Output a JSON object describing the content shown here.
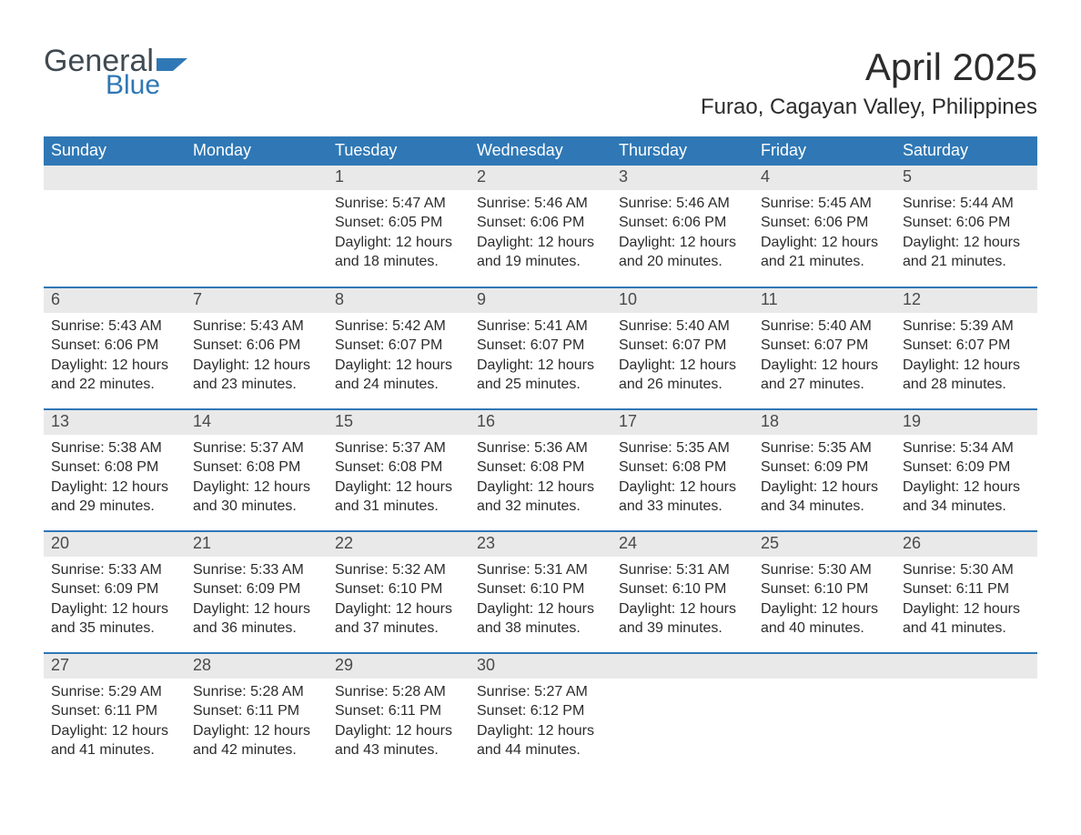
{
  "logo": {
    "word1": "General",
    "word2": "Blue"
  },
  "header": {
    "month": "April 2025",
    "location": "Furao, Cagayan Valley, Philippines"
  },
  "colors": {
    "header_bg": "#2f78b5",
    "header_text": "#ffffff",
    "daynum_bg": "#e9e9e9",
    "rule": "#2f78b5",
    "body_text": "#2c2c2c",
    "page_bg": "#ffffff"
  },
  "day_labels": [
    "Sunday",
    "Monday",
    "Tuesday",
    "Wednesday",
    "Thursday",
    "Friday",
    "Saturday"
  ],
  "weeks": [
    [
      null,
      null,
      {
        "n": "1",
        "sr": "Sunrise: 5:47 AM",
        "ss": "Sunset: 6:05 PM",
        "d1": "Daylight: 12 hours",
        "d2": "and 18 minutes."
      },
      {
        "n": "2",
        "sr": "Sunrise: 5:46 AM",
        "ss": "Sunset: 6:06 PM",
        "d1": "Daylight: 12 hours",
        "d2": "and 19 minutes."
      },
      {
        "n": "3",
        "sr": "Sunrise: 5:46 AM",
        "ss": "Sunset: 6:06 PM",
        "d1": "Daylight: 12 hours",
        "d2": "and 20 minutes."
      },
      {
        "n": "4",
        "sr": "Sunrise: 5:45 AM",
        "ss": "Sunset: 6:06 PM",
        "d1": "Daylight: 12 hours",
        "d2": "and 21 minutes."
      },
      {
        "n": "5",
        "sr": "Sunrise: 5:44 AM",
        "ss": "Sunset: 6:06 PM",
        "d1": "Daylight: 12 hours",
        "d2": "and 21 minutes."
      }
    ],
    [
      {
        "n": "6",
        "sr": "Sunrise: 5:43 AM",
        "ss": "Sunset: 6:06 PM",
        "d1": "Daylight: 12 hours",
        "d2": "and 22 minutes."
      },
      {
        "n": "7",
        "sr": "Sunrise: 5:43 AM",
        "ss": "Sunset: 6:06 PM",
        "d1": "Daylight: 12 hours",
        "d2": "and 23 minutes."
      },
      {
        "n": "8",
        "sr": "Sunrise: 5:42 AM",
        "ss": "Sunset: 6:07 PM",
        "d1": "Daylight: 12 hours",
        "d2": "and 24 minutes."
      },
      {
        "n": "9",
        "sr": "Sunrise: 5:41 AM",
        "ss": "Sunset: 6:07 PM",
        "d1": "Daylight: 12 hours",
        "d2": "and 25 minutes."
      },
      {
        "n": "10",
        "sr": "Sunrise: 5:40 AM",
        "ss": "Sunset: 6:07 PM",
        "d1": "Daylight: 12 hours",
        "d2": "and 26 minutes."
      },
      {
        "n": "11",
        "sr": "Sunrise: 5:40 AM",
        "ss": "Sunset: 6:07 PM",
        "d1": "Daylight: 12 hours",
        "d2": "and 27 minutes."
      },
      {
        "n": "12",
        "sr": "Sunrise: 5:39 AM",
        "ss": "Sunset: 6:07 PM",
        "d1": "Daylight: 12 hours",
        "d2": "and 28 minutes."
      }
    ],
    [
      {
        "n": "13",
        "sr": "Sunrise: 5:38 AM",
        "ss": "Sunset: 6:08 PM",
        "d1": "Daylight: 12 hours",
        "d2": "and 29 minutes."
      },
      {
        "n": "14",
        "sr": "Sunrise: 5:37 AM",
        "ss": "Sunset: 6:08 PM",
        "d1": "Daylight: 12 hours",
        "d2": "and 30 minutes."
      },
      {
        "n": "15",
        "sr": "Sunrise: 5:37 AM",
        "ss": "Sunset: 6:08 PM",
        "d1": "Daylight: 12 hours",
        "d2": "and 31 minutes."
      },
      {
        "n": "16",
        "sr": "Sunrise: 5:36 AM",
        "ss": "Sunset: 6:08 PM",
        "d1": "Daylight: 12 hours",
        "d2": "and 32 minutes."
      },
      {
        "n": "17",
        "sr": "Sunrise: 5:35 AM",
        "ss": "Sunset: 6:08 PM",
        "d1": "Daylight: 12 hours",
        "d2": "and 33 minutes."
      },
      {
        "n": "18",
        "sr": "Sunrise: 5:35 AM",
        "ss": "Sunset: 6:09 PM",
        "d1": "Daylight: 12 hours",
        "d2": "and 34 minutes."
      },
      {
        "n": "19",
        "sr": "Sunrise: 5:34 AM",
        "ss": "Sunset: 6:09 PM",
        "d1": "Daylight: 12 hours",
        "d2": "and 34 minutes."
      }
    ],
    [
      {
        "n": "20",
        "sr": "Sunrise: 5:33 AM",
        "ss": "Sunset: 6:09 PM",
        "d1": "Daylight: 12 hours",
        "d2": "and 35 minutes."
      },
      {
        "n": "21",
        "sr": "Sunrise: 5:33 AM",
        "ss": "Sunset: 6:09 PM",
        "d1": "Daylight: 12 hours",
        "d2": "and 36 minutes."
      },
      {
        "n": "22",
        "sr": "Sunrise: 5:32 AM",
        "ss": "Sunset: 6:10 PM",
        "d1": "Daylight: 12 hours",
        "d2": "and 37 minutes."
      },
      {
        "n": "23",
        "sr": "Sunrise: 5:31 AM",
        "ss": "Sunset: 6:10 PM",
        "d1": "Daylight: 12 hours",
        "d2": "and 38 minutes."
      },
      {
        "n": "24",
        "sr": "Sunrise: 5:31 AM",
        "ss": "Sunset: 6:10 PM",
        "d1": "Daylight: 12 hours",
        "d2": "and 39 minutes."
      },
      {
        "n": "25",
        "sr": "Sunrise: 5:30 AM",
        "ss": "Sunset: 6:10 PM",
        "d1": "Daylight: 12 hours",
        "d2": "and 40 minutes."
      },
      {
        "n": "26",
        "sr": "Sunrise: 5:30 AM",
        "ss": "Sunset: 6:11 PM",
        "d1": "Daylight: 12 hours",
        "d2": "and 41 minutes."
      }
    ],
    [
      {
        "n": "27",
        "sr": "Sunrise: 5:29 AM",
        "ss": "Sunset: 6:11 PM",
        "d1": "Daylight: 12 hours",
        "d2": "and 41 minutes."
      },
      {
        "n": "28",
        "sr": "Sunrise: 5:28 AM",
        "ss": "Sunset: 6:11 PM",
        "d1": "Daylight: 12 hours",
        "d2": "and 42 minutes."
      },
      {
        "n": "29",
        "sr": "Sunrise: 5:28 AM",
        "ss": "Sunset: 6:11 PM",
        "d1": "Daylight: 12 hours",
        "d2": "and 43 minutes."
      },
      {
        "n": "30",
        "sr": "Sunrise: 5:27 AM",
        "ss": "Sunset: 6:12 PM",
        "d1": "Daylight: 12 hours",
        "d2": "and 44 minutes."
      },
      null,
      null,
      null
    ]
  ]
}
